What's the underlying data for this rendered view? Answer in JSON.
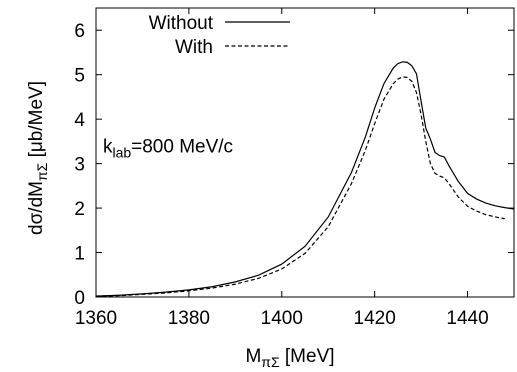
{
  "chart_data": {
    "type": "line",
    "xlabel": {
      "main": "M",
      "sub": "πΣ",
      "unit": " [MeV]"
    },
    "ylabel": {
      "prefix": "dσ/dM",
      "sub": "πΣ",
      "unit": " [μb/MeV]"
    },
    "xlim": [
      1360,
      1450
    ],
    "ylim": [
      0,
      6.5
    ],
    "xticks": [
      "1360",
      "1380",
      "1400",
      "1420",
      "1440"
    ],
    "yticks": [
      "0",
      "1",
      "2",
      "3",
      "4",
      "5",
      "6"
    ],
    "grid": false,
    "legend_position": "top-right",
    "annotation": {
      "prefix": "k",
      "sub": "lab",
      "rest": "=800 MeV/c",
      "x": 1361.5,
      "y": 3.25
    },
    "series": [
      {
        "name": "Without",
        "style": "solid",
        "color": "#000000",
        "points": [
          [
            1360,
            0.02
          ],
          [
            1365,
            0.04
          ],
          [
            1370,
            0.07
          ],
          [
            1375,
            0.11
          ],
          [
            1380,
            0.16
          ],
          [
            1385,
            0.23
          ],
          [
            1390,
            0.34
          ],
          [
            1395,
            0.49
          ],
          [
            1400,
            0.74
          ],
          [
            1405,
            1.14
          ],
          [
            1410,
            1.8
          ],
          [
            1415,
            2.8
          ],
          [
            1418,
            3.6
          ],
          [
            1420,
            4.25
          ],
          [
            1422,
            4.8
          ],
          [
            1424,
            5.15
          ],
          [
            1425,
            5.25
          ],
          [
            1426,
            5.29
          ],
          [
            1427,
            5.28
          ],
          [
            1428,
            5.2
          ],
          [
            1429,
            5.02
          ],
          [
            1430,
            4.4
          ],
          [
            1431,
            3.8
          ],
          [
            1432,
            3.55
          ],
          [
            1433,
            3.25
          ],
          [
            1434,
            3.18
          ],
          [
            1435,
            3.15
          ],
          [
            1436,
            2.95
          ],
          [
            1438,
            2.6
          ],
          [
            1440,
            2.33
          ],
          [
            1442,
            2.2
          ],
          [
            1444,
            2.11
          ],
          [
            1446,
            2.05
          ],
          [
            1448,
            2.01
          ],
          [
            1450,
            1.98
          ]
        ]
      },
      {
        "name": "With",
        "style": "dashed",
        "color": "#000000",
        "points": [
          [
            1360,
            0.02
          ],
          [
            1365,
            0.03
          ],
          [
            1370,
            0.06
          ],
          [
            1375,
            0.09
          ],
          [
            1380,
            0.14
          ],
          [
            1385,
            0.2
          ],
          [
            1390,
            0.29
          ],
          [
            1395,
            0.42
          ],
          [
            1400,
            0.63
          ],
          [
            1405,
            0.98
          ],
          [
            1410,
            1.58
          ],
          [
            1415,
            2.55
          ],
          [
            1418,
            3.3
          ],
          [
            1420,
            3.9
          ],
          [
            1422,
            4.45
          ],
          [
            1424,
            4.8
          ],
          [
            1425,
            4.9
          ],
          [
            1426,
            4.95
          ],
          [
            1427,
            4.94
          ],
          [
            1428,
            4.85
          ],
          [
            1429,
            4.6
          ],
          [
            1430,
            4.1
          ],
          [
            1431,
            3.5
          ],
          [
            1432,
            3.0
          ],
          [
            1433,
            2.78
          ],
          [
            1434,
            2.72
          ],
          [
            1435,
            2.68
          ],
          [
            1436,
            2.55
          ],
          [
            1438,
            2.25
          ],
          [
            1440,
            2.04
          ],
          [
            1442,
            1.93
          ],
          [
            1444,
            1.85
          ],
          [
            1446,
            1.8
          ],
          [
            1448,
            1.76
          ]
        ]
      }
    ]
  }
}
